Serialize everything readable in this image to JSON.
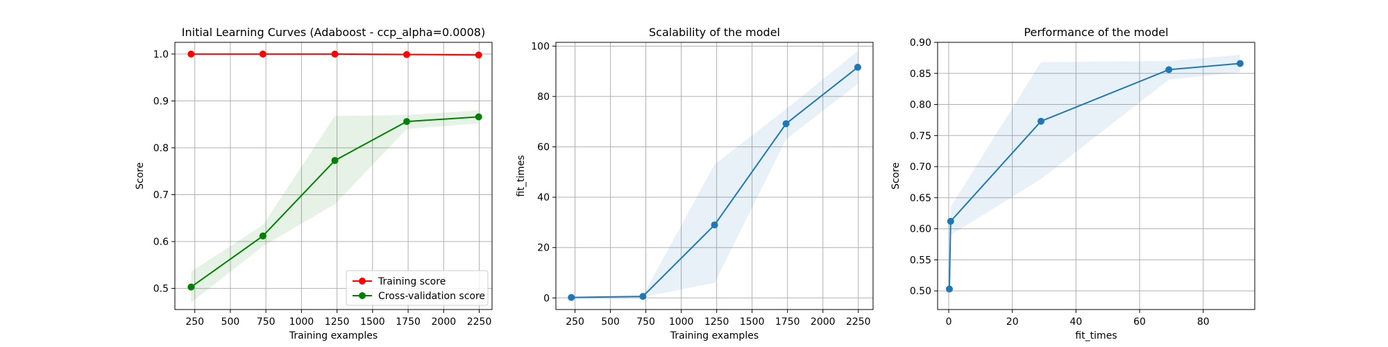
{
  "chart_data": [
    {
      "type": "line",
      "title": "Initial Learning Curves (Adaboost - ccp_alpha=0.0008)",
      "xlabel": "Training examples",
      "ylabel": "Score",
      "xlim": [
        110,
        2340
      ],
      "ylim": [
        0.455,
        1.025
      ],
      "xticks": [
        250,
        500,
        750,
        1000,
        1250,
        1500,
        1750,
        2000,
        2250
      ],
      "yticks": [
        0.5,
        0.6,
        0.7,
        0.8,
        0.9,
        1.0
      ],
      "ytick_labels": [
        "0.5",
        "0.6",
        "0.7",
        "0.8",
        "0.9",
        "1.0"
      ],
      "grid": true,
      "legend": "lower-right",
      "x": [
        224,
        729,
        1235,
        1740,
        2246
      ],
      "series": [
        {
          "name": "Training score",
          "color": "#ff0000",
          "values": [
            1.0,
            1.0,
            1.0,
            0.999,
            0.998
          ],
          "band_low": [
            0.999,
            0.999,
            0.999,
            0.998,
            0.997
          ],
          "band_high": [
            1.0,
            1.0,
            1.0,
            1.0,
            0.999
          ]
        },
        {
          "name": "Cross-validation score",
          "color": "#008000",
          "values": [
            0.503,
            0.612,
            0.773,
            0.856,
            0.866
          ],
          "band_low": [
            0.47,
            0.59,
            0.68,
            0.84,
            0.852
          ],
          "band_high": [
            0.536,
            0.635,
            0.868,
            0.87,
            0.88
          ]
        }
      ]
    },
    {
      "type": "line",
      "title": "Scalability of the model",
      "xlabel": "Training examples",
      "ylabel": "fit_times",
      "xlim": [
        115,
        2354
      ],
      "ylim": [
        -4.6,
        101.5
      ],
      "xticks": [
        250,
        500,
        750,
        1000,
        1250,
        1500,
        1750,
        2000,
        2250
      ],
      "yticks": [
        0,
        20,
        40,
        60,
        80,
        100
      ],
      "ytick_labels": [
        "0",
        "20",
        "40",
        "60",
        "80",
        "100"
      ],
      "grid": true,
      "x": [
        224,
        729,
        1235,
        1740,
        2246
      ],
      "series": [
        {
          "color": "#1f77b4",
          "values": [
            0.2,
            0.6,
            29.0,
            69.2,
            91.6
          ],
          "band_low": [
            0.1,
            0.3,
            6.0,
            63.0,
            85.0
          ],
          "band_high": [
            0.3,
            0.9,
            53.0,
            75.0,
            98.0
          ]
        }
      ]
    },
    {
      "type": "line",
      "title": "Performance of the model",
      "xlabel": "fit_times",
      "ylabel": "Score",
      "xlim": [
        -3.5,
        96.2
      ],
      "ylim": [
        0.47,
        0.9
      ],
      "xticks": [
        0,
        20,
        40,
        60,
        80
      ],
      "yticks": [
        0.5,
        0.55,
        0.6,
        0.65,
        0.7,
        0.75,
        0.8,
        0.85,
        0.9
      ],
      "ytick_labels": [
        "0.50",
        "0.55",
        "0.60",
        "0.65",
        "0.70",
        "0.75",
        "0.80",
        "0.85",
        "0.90"
      ],
      "grid": true,
      "series": [
        {
          "color": "#1f77b4",
          "x": [
            0.2,
            0.6,
            29.0,
            69.2,
            91.6
          ],
          "values": [
            0.503,
            0.612,
            0.773,
            0.856,
            0.866
          ],
          "band_low": [
            0.47,
            0.59,
            0.68,
            0.84,
            0.852
          ],
          "band_high": [
            0.536,
            0.635,
            0.868,
            0.87,
            0.88
          ]
        }
      ]
    }
  ]
}
